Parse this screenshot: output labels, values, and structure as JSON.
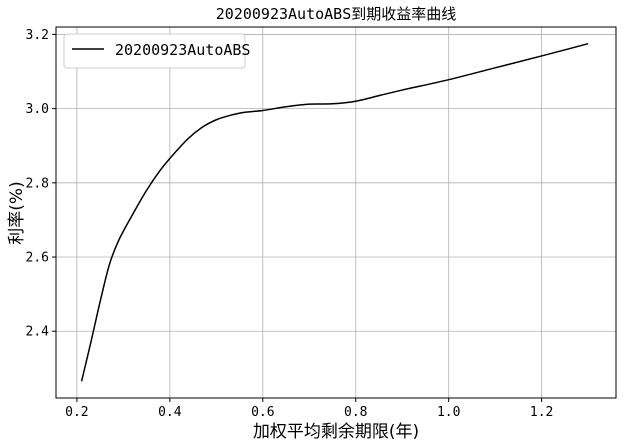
{
  "chart_data": {
    "type": "line",
    "title": "20200923AutoABS到期收益率曲线",
    "xlabel": "加权平均剩余期限(年)",
    "ylabel": "利率(%)",
    "xlim": [
      0.155,
      1.36
    ],
    "ylim": [
      2.22,
      3.22
    ],
    "xticks": [
      0.2,
      0.4,
      0.6,
      0.8,
      1.0,
      1.2
    ],
    "xtick_labels": [
      "0.2",
      "0.4",
      "0.6",
      "0.8",
      "1.0",
      "1.2"
    ],
    "yticks": [
      2.4,
      2.6,
      2.8,
      3.0,
      3.2
    ],
    "ytick_labels": [
      "2.4",
      "2.6",
      "2.8",
      "3.0",
      "3.2"
    ],
    "grid": true,
    "legend_position": "top-left",
    "line_color": "#000000",
    "series": [
      {
        "name": "20200923AutoABS",
        "x": [
          0.21,
          0.23,
          0.25,
          0.27,
          0.29,
          0.32,
          0.35,
          0.38,
          0.41,
          0.44,
          0.47,
          0.5,
          0.53,
          0.56,
          0.6,
          0.65,
          0.7,
          0.75,
          0.8,
          0.85,
          0.9,
          1.0,
          1.1,
          1.2,
          1.3
        ],
        "y": [
          2.265,
          2.37,
          2.48,
          2.58,
          2.645,
          2.715,
          2.78,
          2.835,
          2.88,
          2.92,
          2.95,
          2.97,
          2.982,
          2.99,
          2.995,
          3.005,
          3.012,
          3.013,
          3.02,
          3.035,
          3.05,
          3.078,
          3.11,
          3.142,
          3.175
        ]
      }
    ]
  }
}
